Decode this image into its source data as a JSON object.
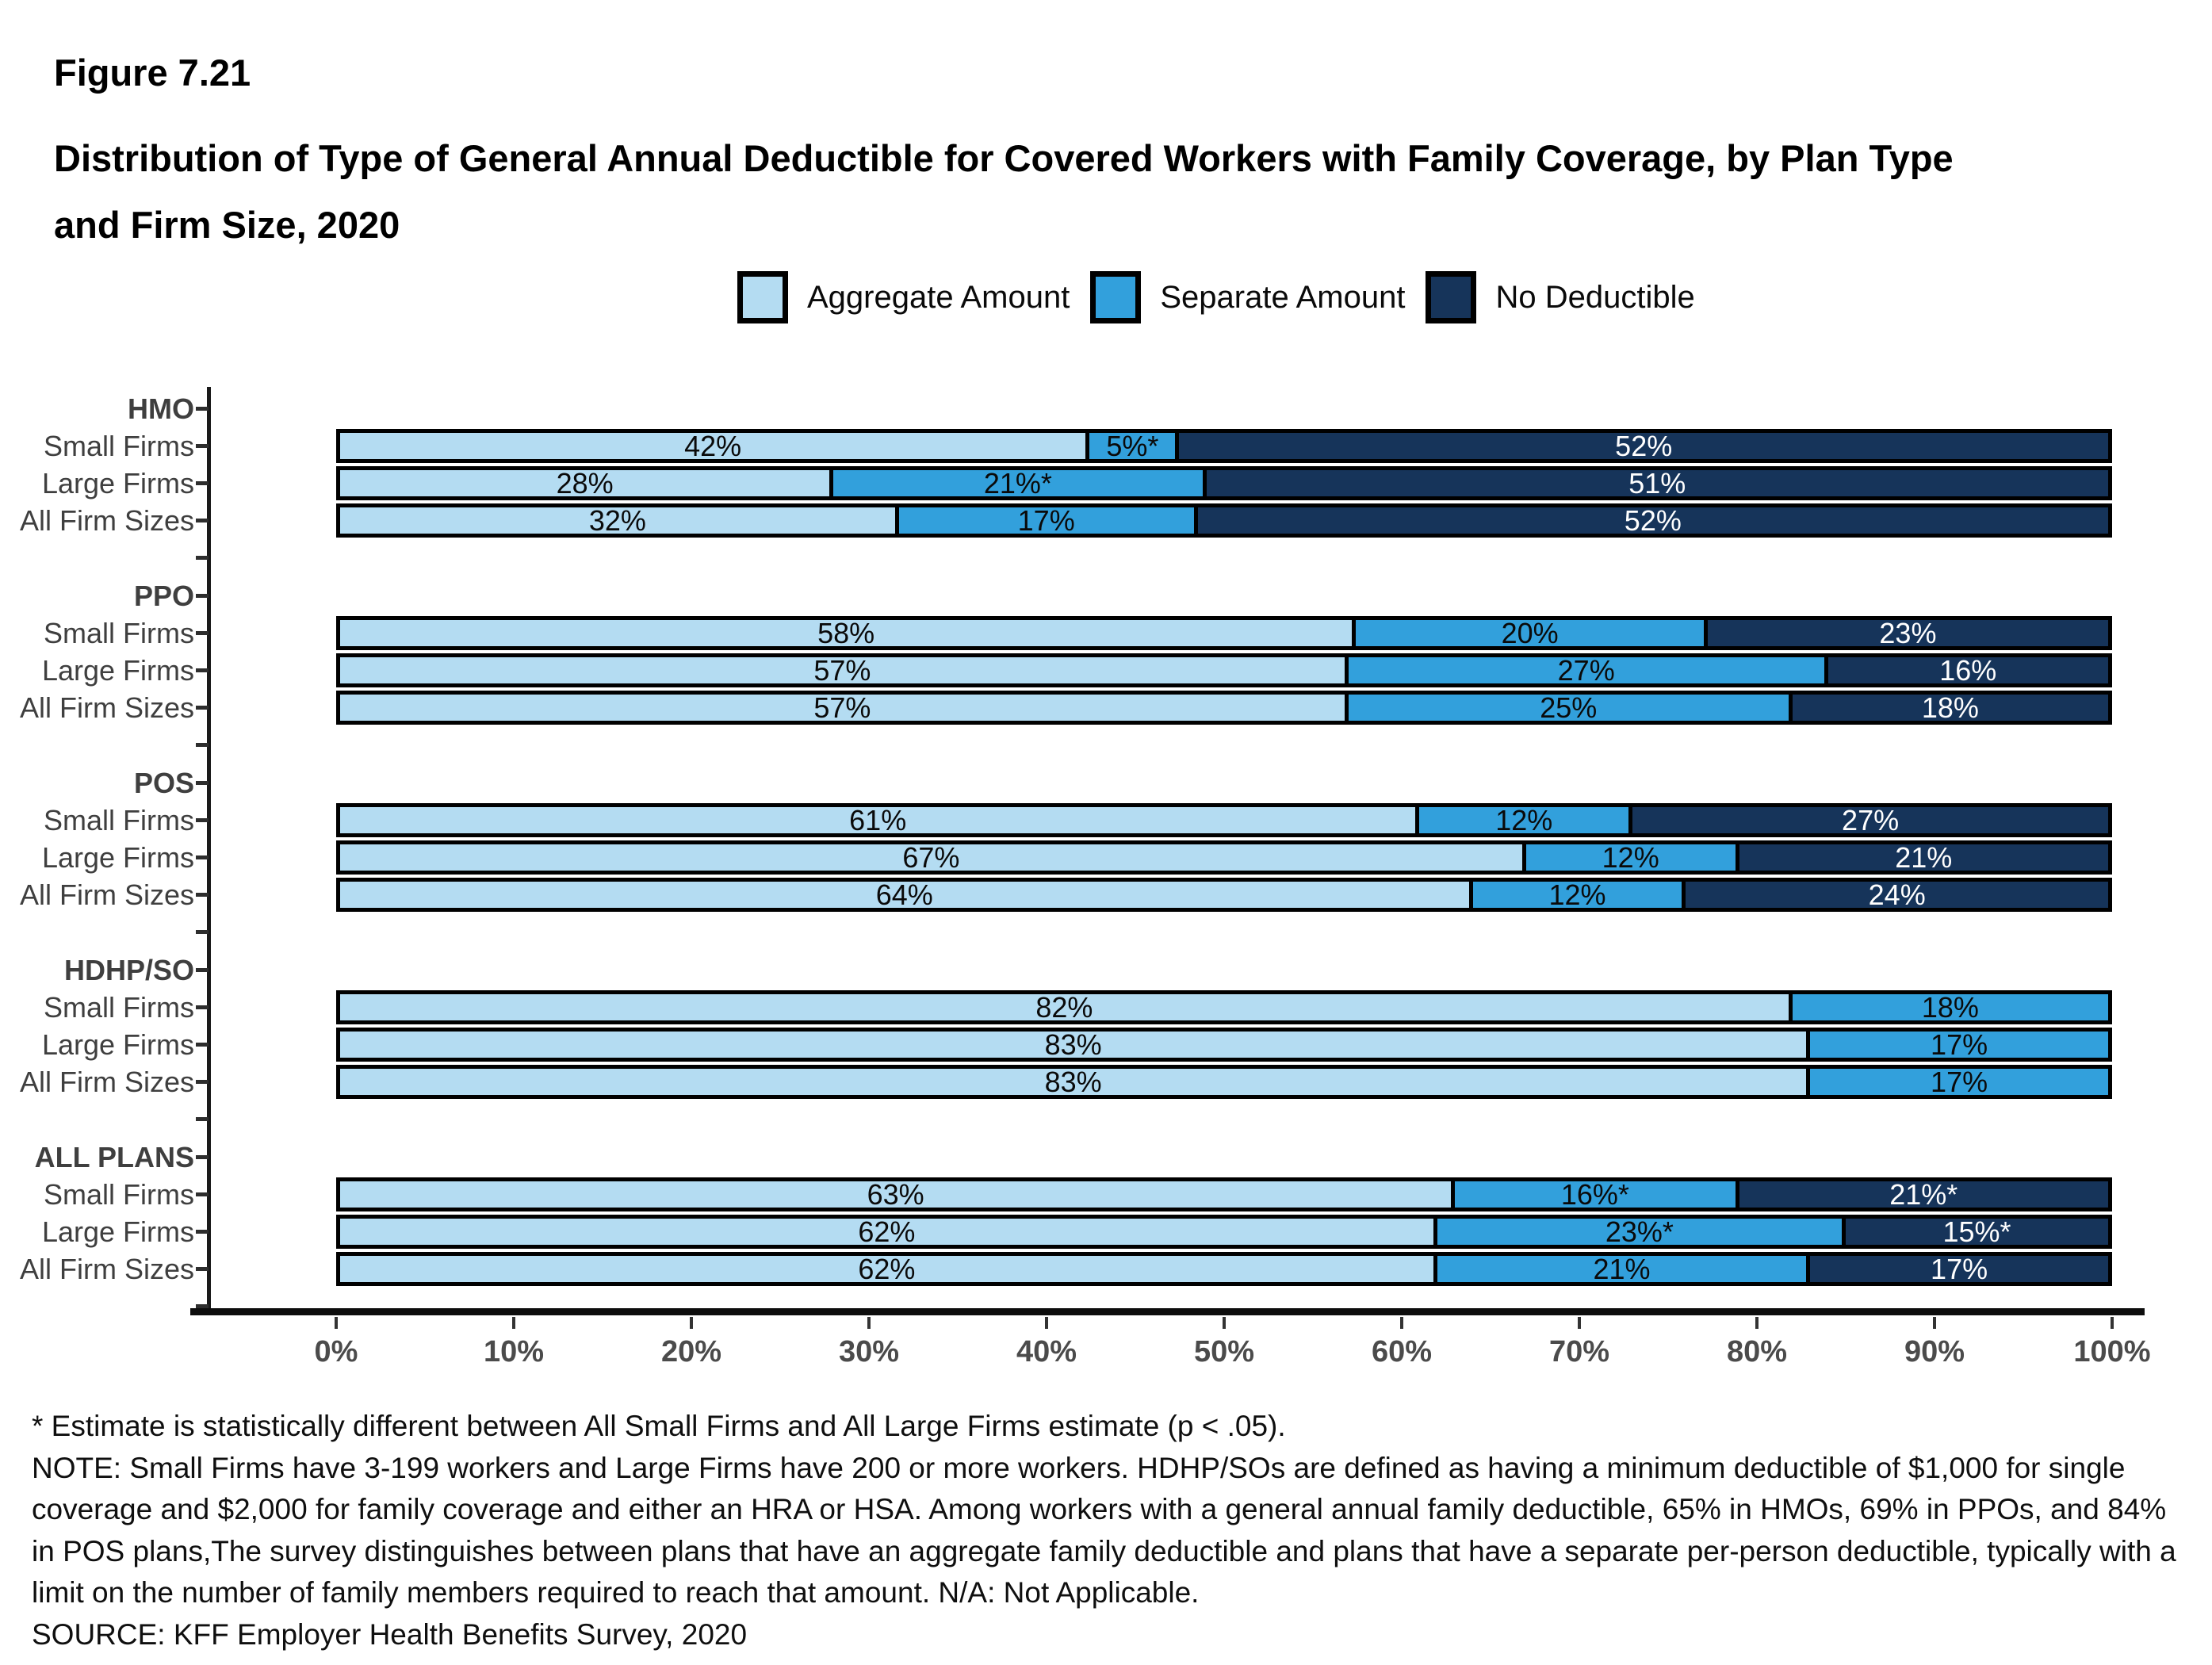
{
  "figure_label": "Figure 7.21",
  "title": "Distribution of Type of General Annual Deductible for Covered Workers with Family Coverage, by Plan Type and Firm Size, 2020",
  "legend": [
    {
      "label": "Aggregate Amount",
      "color": "#B4DCF2"
    },
    {
      "label": "Separate Amount",
      "color": "#32A0DC"
    },
    {
      "label": "No Deductible",
      "color": "#16345A"
    }
  ],
  "chart_data": {
    "type": "bar",
    "orientation": "horizontal",
    "stacked": true,
    "title": "Distribution of Type of General Annual Deductible for Covered Workers with Family Coverage, by Plan Type and Firm Size, 2020",
    "series_names": [
      "Aggregate Amount",
      "Separate Amount",
      "No Deductible"
    ],
    "colors": [
      "#B4DCF2",
      "#32A0DC",
      "#16345A"
    ],
    "xlim": [
      0,
      100
    ],
    "x_ticks": [
      "0%",
      "10%",
      "20%",
      "30%",
      "40%",
      "50%",
      "60%",
      "70%",
      "80%",
      "90%",
      "100%"
    ],
    "legend_position": "top",
    "grid": false,
    "groups": [
      {
        "plan": "HMO",
        "rows": [
          {
            "label": "Small Firms",
            "values": [
              42,
              5,
              52
            ],
            "labels": [
              "42%",
              "5%*",
              "52%"
            ]
          },
          {
            "label": "Large Firms",
            "values": [
              28,
              21,
              51
            ],
            "labels": [
              "28%",
              "21%*",
              "51%"
            ]
          },
          {
            "label": "All Firm Sizes",
            "values": [
              32,
              17,
              52
            ],
            "labels": [
              "32%",
              "17%",
              "52%"
            ]
          }
        ]
      },
      {
        "plan": "PPO",
        "rows": [
          {
            "label": "Small Firms",
            "values": [
              58,
              20,
              23
            ],
            "labels": [
              "58%",
              "20%",
              "23%"
            ]
          },
          {
            "label": "Large Firms",
            "values": [
              57,
              27,
              16
            ],
            "labels": [
              "57%",
              "27%",
              "16%"
            ]
          },
          {
            "label": "All Firm Sizes",
            "values": [
              57,
              25,
              18
            ],
            "labels": [
              "57%",
              "25%",
              "18%"
            ]
          }
        ]
      },
      {
        "plan": "POS",
        "rows": [
          {
            "label": "Small Firms",
            "values": [
              61,
              12,
              27
            ],
            "labels": [
              "61%",
              "12%",
              "27%"
            ]
          },
          {
            "label": "Large Firms",
            "values": [
              67,
              12,
              21
            ],
            "labels": [
              "67%",
              "12%",
              "21%"
            ]
          },
          {
            "label": "All Firm Sizes",
            "values": [
              64,
              12,
              24
            ],
            "labels": [
              "64%",
              "12%",
              "24%"
            ]
          }
        ]
      },
      {
        "plan": "HDHP/SO",
        "rows": [
          {
            "label": "Small Firms",
            "values": [
              82,
              18
            ],
            "labels": [
              "82%",
              "18%"
            ]
          },
          {
            "label": "Large Firms",
            "values": [
              83,
              17
            ],
            "labels": [
              "83%",
              "17%"
            ]
          },
          {
            "label": "All Firm Sizes",
            "values": [
              83,
              17
            ],
            "labels": [
              "83%",
              "17%"
            ]
          }
        ]
      },
      {
        "plan": "ALL PLANS",
        "rows": [
          {
            "label": "Small Firms",
            "values": [
              63,
              16,
              21
            ],
            "labels": [
              "63%",
              "16%*",
              "21%*"
            ]
          },
          {
            "label": "Large Firms",
            "values": [
              62,
              23,
              15
            ],
            "labels": [
              "62%",
              "23%*",
              "15%*"
            ]
          },
          {
            "label": "All Firm Sizes",
            "values": [
              62,
              21,
              17
            ],
            "labels": [
              "62%",
              "21%",
              "17%"
            ]
          }
        ]
      }
    ]
  },
  "footnotes": {
    "star": "* Estimate is statistically different between All Small Firms and All Large Firms estimate (p < .05).",
    "note": "NOTE: Small Firms have 3-199 workers and Large Firms have 200 or more workers. HDHP/SOs are defined as having a minimum deductible of $1,000 for single coverage and $2,000 for family coverage and either an HRA or HSA. Among workers with a general annual family deductible, 65% in HMOs, 69% in PPOs, and 84% in POS plans,The survey distinguishes between plans that have an aggregate family deductible and plans that have a separate per-person deductible, typically with a limit on the number of family members required to reach that amount. N/A: Not Applicable.",
    "source": "SOURCE: KFF Employer Health Benefits Survey, 2020"
  }
}
